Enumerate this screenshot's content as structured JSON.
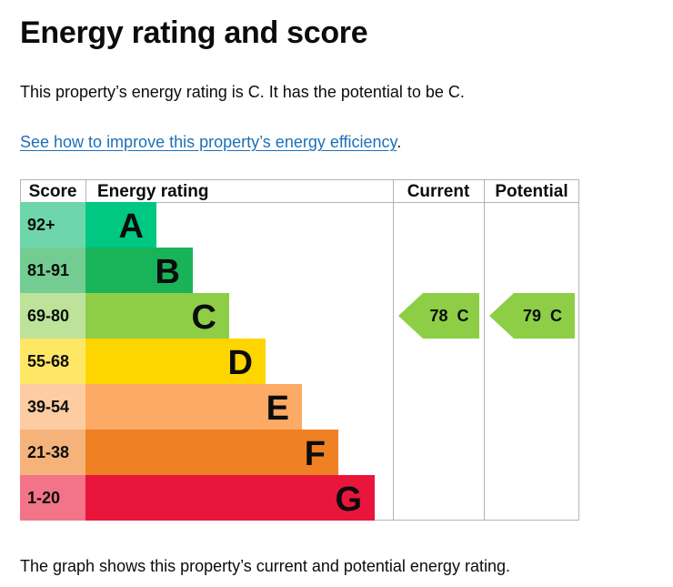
{
  "page": {
    "title": "Energy rating and score",
    "summary": "This property’s energy rating is C. It has the potential to be C.",
    "improve_link": "See how to improve this property’s energy efficiency",
    "improve_suffix": ".",
    "footer": "The graph shows this property’s current and potential energy rating."
  },
  "chart_data": {
    "type": "bar",
    "columns": [
      "Score",
      "Energy rating",
      "Current",
      "Potential"
    ],
    "bands": [
      {
        "rating": "A",
        "score": "92+",
        "color": "#00c781",
        "score_bg": "#6fd6ac"
      },
      {
        "rating": "B",
        "score": "81-91",
        "color": "#19b459",
        "score_bg": "#73cc92"
      },
      {
        "rating": "C",
        "score": "69-80",
        "color": "#8dce46",
        "score_bg": "#bde39b"
      },
      {
        "rating": "D",
        "score": "55-68",
        "color": "#ffd500",
        "score_bg": "#ffe766"
      },
      {
        "rating": "E",
        "score": "39-54",
        "color": "#fcaa65",
        "score_bg": "#fdcca2"
      },
      {
        "rating": "F",
        "score": "21-38",
        "color": "#ef8023",
        "score_bg": "#f5b37b"
      },
      {
        "rating": "G",
        "score": "1-20",
        "color": "#e9153b",
        "score_bg": "#f27489"
      }
    ],
    "current": {
      "score": 78,
      "rating": "C",
      "label": "78  C"
    },
    "potential": {
      "score": 79,
      "rating": "C",
      "label": "79  C"
    },
    "arrow_color": "#8dce46",
    "grid_color": "#b1b4b6"
  }
}
